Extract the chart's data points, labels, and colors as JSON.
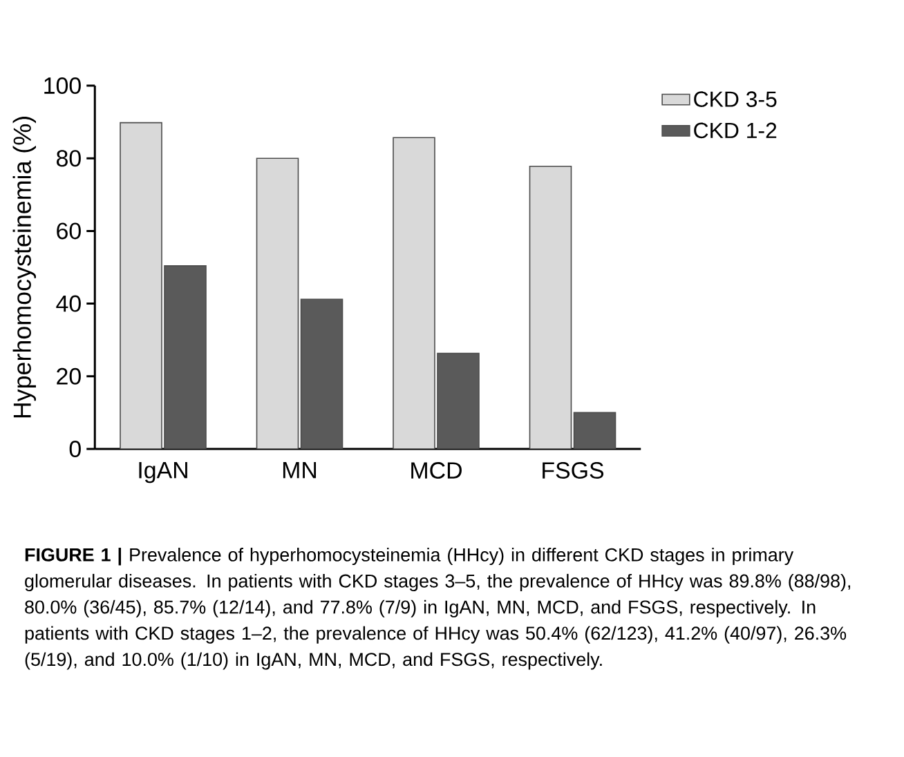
{
  "chart_data": {
    "type": "bar",
    "ylabel": "Hyperhomocysteinemia (%)",
    "categories": [
      "IgAN",
      "MN",
      "MCD",
      "FSGS"
    ],
    "series": [
      {
        "name": "CKD 3-5",
        "color": "#d9d9d9",
        "values": [
          89.8,
          80.0,
          85.7,
          77.8
        ]
      },
      {
        "name": "CKD 1-2",
        "color": "#5a5a5a",
        "values": [
          50.4,
          41.2,
          26.3,
          10.0
        ]
      }
    ],
    "ylim": [
      0,
      100
    ],
    "yticks": [
      0,
      20,
      40,
      60,
      80,
      100
    ],
    "legend": "top right",
    "grid": false,
    "annotations": [
      "**FIGURE 1 |** Prevalence of hyperhomocysteinemia (HHcy) in different CKD stages in primary glomerular diseases. In patients with CKD stages 3–5, the prevalence of HHcy was 89.8% (88/98), 80.0% (36/45), 85.7% (12/14), and 77.8% (7/9) in IgAN, MN, MCD, and FSGS, respectively. In patients with CKD stages 1–2, the prevalence of HHcy was 50.4% (62/123), 41.2% (40/97), 26.3% (5/19), and 10.0% (1/10) in IgAN, MN, MCD, and FSGS, respectively."
    ]
  }
}
